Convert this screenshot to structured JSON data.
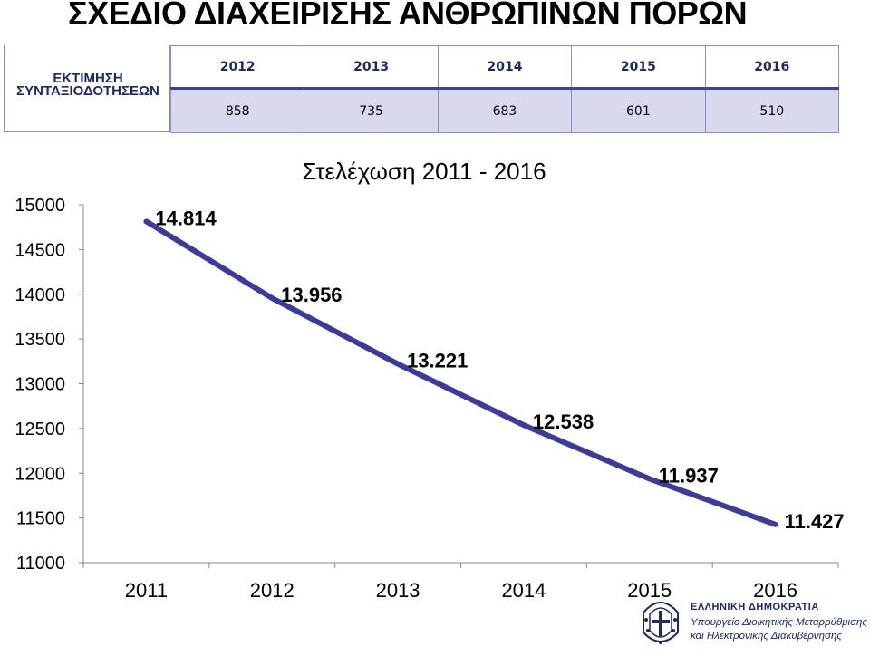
{
  "page": {
    "title": "ΣΧΕΔΙΟ ΔΙΑΧΕΙΡΙΣΗΣ ΑΝΘΡΩΠΙΝΩΝ ΠΟΡΩΝ"
  },
  "estimate": {
    "label_line1": "ΕΚΤΙΜΗΣΗ",
    "label_line2": "ΣΥΝΤΑΞΙΟΔΟΤΗΣΕΩΝ",
    "years": [
      "2012",
      "2013",
      "2014",
      "2015",
      "2016"
    ],
    "values": [
      "858",
      "735",
      "683",
      "601",
      "510"
    ]
  },
  "chart_data": {
    "type": "line",
    "title": "Στελέχωση 2011 - 2016",
    "categories": [
      "2011",
      "2012",
      "2013",
      "2014",
      "2015",
      "2016"
    ],
    "series": [
      {
        "values": [
          14814,
          13956,
          13221,
          12538,
          11937,
          11427
        ]
      }
    ],
    "data_labels": [
      "14.814",
      "13.956",
      "13.221",
      "12.538",
      "11.937",
      "11.427"
    ],
    "y_ticks": [
      11000,
      11500,
      12000,
      12500,
      13000,
      13500,
      14000,
      14500,
      15000
    ],
    "ylim": [
      11000,
      15000
    ],
    "grid": false,
    "line_color": "#3b3b9b"
  },
  "logo": {
    "line1": "ΕΛΛΗΝΙΚΗ ΔΗΜΟΚΡΑΤΙΑ",
    "line2": "Υπουργείο Διοικητικής Μεταρρύθμισης",
    "line3": "και Ηλεκτρονικής Διακυβέρνησης",
    "icon": "greek-coat-of-arms-icon",
    "color": "#1f2a60"
  }
}
